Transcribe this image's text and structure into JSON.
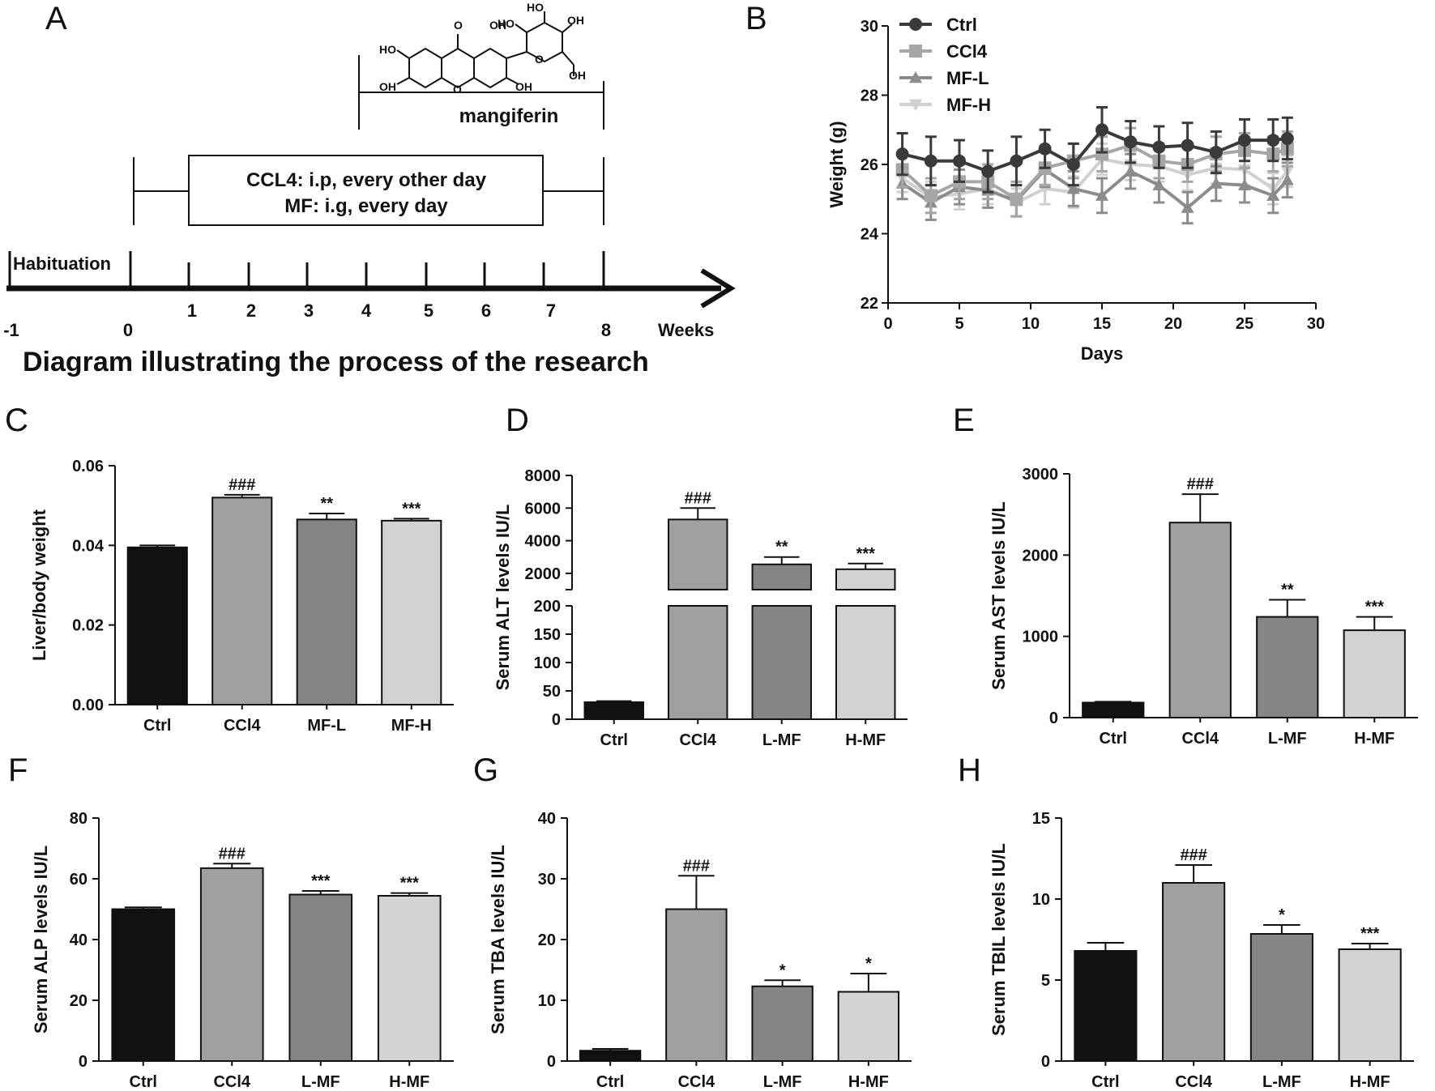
{
  "panel_labels": [
    "A",
    "B",
    "C",
    "D",
    "E",
    "F",
    "G",
    "H"
  ],
  "diagram": {
    "title": "Diagram illustrating the process of the research",
    "habituation_label": "Habituation",
    "week_ticks": [
      "-1",
      "0",
      "1",
      "2",
      "3",
      "4",
      "5",
      "6",
      "7",
      "8"
    ],
    "axis_unit": "Weeks",
    "treatment_line1": "CCL4: i.p, every other day",
    "treatment_line2": "MF: i.g, every day",
    "compound_label": "mangiferin",
    "structure_atoms": [
      "O",
      "OH",
      "HO",
      "OH",
      "OH",
      "HO",
      "HO",
      "O",
      "O",
      "OH",
      "OH"
    ]
  },
  "colors": {
    "ctrl": "#111111",
    "ccl4": "#a0a0a0",
    "mfl": "#858585",
    "mfh": "#d2d2d2",
    "line_ctrl": "#3a3a3a",
    "line_ccl4": "#a6a6a6",
    "line_mfl": "#8c8c8c",
    "line_mfh": "#d0d0d0"
  },
  "chart_data": [
    {
      "panel": "B",
      "type": "line",
      "xlabel": "Days",
      "ylabel": "Weight (g)",
      "xlim": [
        0,
        30
      ],
      "ylim": [
        22,
        30
      ],
      "xticks": [
        0,
        5,
        10,
        15,
        20,
        25,
        30
      ],
      "yticks": [
        22,
        24,
        26,
        28,
        30
      ],
      "x": [
        1,
        3,
        5,
        7,
        9,
        11,
        13,
        15,
        17,
        19,
        21,
        23,
        25,
        27,
        28
      ],
      "legend": [
        "Ctrl",
        "CCl4",
        "MF-L",
        "MF-H"
      ],
      "legend_position": "top-left",
      "series": [
        {
          "name": "Ctrl",
          "marker": "circle",
          "values": [
            26.3,
            26.1,
            26.1,
            25.8,
            26.1,
            26.45,
            26.0,
            27.0,
            26.65,
            26.5,
            26.55,
            26.35,
            26.7,
            26.7,
            26.75
          ],
          "errors": [
            0.6,
            0.7,
            0.6,
            0.6,
            0.7,
            0.55,
            0.6,
            0.65,
            0.6,
            0.6,
            0.65,
            0.6,
            0.6,
            0.6,
            0.6
          ]
        },
        {
          "name": "CCl4",
          "marker": "square",
          "values": [
            25.85,
            25.1,
            25.5,
            25.5,
            25.0,
            25.9,
            26.1,
            26.3,
            26.55,
            26.1,
            26.0,
            26.3,
            26.4,
            26.3,
            26.45
          ],
          "errors": [
            0.5,
            0.5,
            0.5,
            0.5,
            0.5,
            0.5,
            0.5,
            0.5,
            0.5,
            0.5,
            0.5,
            0.5,
            0.5,
            0.5,
            0.5
          ]
        },
        {
          "name": "MF-L",
          "marker": "triangle-up",
          "values": [
            25.45,
            24.9,
            25.35,
            25.25,
            24.95,
            25.85,
            25.3,
            25.1,
            25.8,
            25.4,
            24.75,
            25.45,
            25.4,
            25.1,
            25.55
          ],
          "errors": [
            0.45,
            0.5,
            0.5,
            0.5,
            0.45,
            0.5,
            0.5,
            0.5,
            0.5,
            0.5,
            0.45,
            0.5,
            0.5,
            0.5,
            0.5
          ]
        },
        {
          "name": "MF-H",
          "marker": "triangle-down",
          "values": [
            25.6,
            25.05,
            25.15,
            25.3,
            24.9,
            25.3,
            25.2,
            26.15,
            26.0,
            25.95,
            25.7,
            25.9,
            25.85,
            25.3,
            25.8
          ],
          "errors": [
            0.4,
            0.45,
            0.45,
            0.45,
            0.4,
            0.45,
            0.45,
            0.45,
            0.45,
            0.45,
            0.45,
            0.45,
            0.45,
            0.45,
            0.45
          ]
        }
      ]
    },
    {
      "panel": "C",
      "type": "bar",
      "ylabel": "Liver/body weight",
      "categories": [
        "Ctrl",
        "CCl4",
        "MF-L",
        "MF-H"
      ],
      "values": [
        0.0395,
        0.052,
        0.0465,
        0.0462
      ],
      "errors": [
        0.0005,
        0.0007,
        0.0015,
        0.0005
      ],
      "significance": [
        "",
        "###",
        "**",
        "***"
      ],
      "ylim": [
        0,
        0.06
      ],
      "yticks": [
        0,
        0.02,
        0.04,
        0.06
      ],
      "ytick_labels": [
        "0.00",
        "0.02",
        "0.04",
        "0.06"
      ]
    },
    {
      "panel": "D",
      "type": "bar",
      "ylabel": "Serum ALT levels IU/L",
      "categories": [
        "Ctrl",
        "CCl4",
        "L-MF",
        "H-MF"
      ],
      "values": [
        30,
        5300,
        2550,
        2250
      ],
      "errors": [
        2,
        700,
        450,
        350
      ],
      "significance": [
        "",
        "###",
        "**",
        "***"
      ],
      "axis_break": {
        "lower_max": 200,
        "upper_min": 1000,
        "upper_max": 8000
      },
      "yticks_lower": [
        0,
        50,
        100,
        150,
        200
      ],
      "yticks_upper": [
        2000,
        4000,
        6000,
        8000
      ]
    },
    {
      "panel": "E",
      "type": "bar",
      "ylabel": "Serum AST levels IU/L",
      "categories": [
        "Ctrl",
        "CCl4",
        "L-MF",
        "H-MF"
      ],
      "values": [
        185,
        2400,
        1240,
        1075
      ],
      "errors": [
        10,
        350,
        210,
        165
      ],
      "significance": [
        "",
        "###",
        "**",
        "***"
      ],
      "ylim": [
        0,
        3000
      ],
      "yticks": [
        0,
        1000,
        2000,
        3000
      ]
    },
    {
      "panel": "F",
      "type": "bar",
      "ylabel": "Serum ALP levels IU/L",
      "categories": [
        "Ctrl",
        "CCl4",
        "L-MF",
        "H-MF"
      ],
      "values": [
        50,
        63.5,
        54.8,
        54.4
      ],
      "errors": [
        0.6,
        1.5,
        1.2,
        0.9
      ],
      "significance": [
        "",
        "###",
        "***",
        "***"
      ],
      "ylim": [
        0,
        80
      ],
      "yticks": [
        0,
        20,
        40,
        60,
        80
      ]
    },
    {
      "panel": "G",
      "type": "bar",
      "ylabel": "Serum TBA levels IU/L",
      "categories": [
        "Ctrl",
        "CCl4",
        "L-MF",
        "H-MF"
      ],
      "values": [
        1.7,
        25,
        12.3,
        11.4
      ],
      "errors": [
        0.3,
        5.5,
        1.0,
        3.0
      ],
      "significance": [
        "",
        "###",
        "*",
        "*"
      ],
      "ylim": [
        0,
        40
      ],
      "yticks": [
        0,
        10,
        20,
        30,
        40
      ]
    },
    {
      "panel": "H",
      "type": "bar",
      "ylabel": "Serum TBIL levels IU/L",
      "categories": [
        "Ctrl",
        "CCl4",
        "L-MF",
        "H-MF"
      ],
      "values": [
        6.8,
        11.0,
        7.85,
        6.9
      ],
      "errors": [
        0.5,
        1.1,
        0.55,
        0.35
      ],
      "significance": [
        "",
        "###",
        "*",
        "***"
      ],
      "ylim": [
        0,
        15
      ],
      "yticks": [
        0,
        5,
        10,
        15
      ]
    }
  ]
}
